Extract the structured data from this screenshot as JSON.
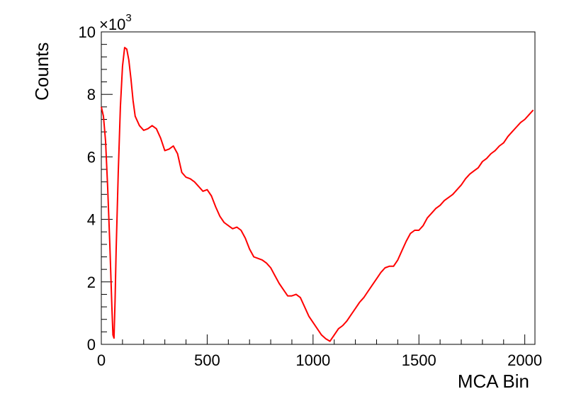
{
  "chart_data": {
    "type": "line",
    "title": "",
    "xlabel": "MCA Bin",
    "ylabel": "Counts",
    "y_multiplier_label": "×10",
    "y_multiplier_exponent": "3",
    "xlim": [
      0,
      2048
    ],
    "ylim": [
      0,
      10000
    ],
    "x_ticks": [
      0,
      500,
      1000,
      1500,
      2000
    ],
    "x_tick_labels": [
      "0",
      "500",
      "1000",
      "1500",
      "2000"
    ],
    "y_ticks": [
      0,
      2000,
      4000,
      6000,
      8000,
      10000
    ],
    "y_tick_labels": [
      "0",
      "2",
      "4",
      "6",
      "8",
      "10"
    ],
    "grid": false,
    "legend": "none",
    "series": [
      {
        "color": "#ff0000",
        "x": [
          0,
          10,
          20,
          30,
          40,
          50,
          55,
          60,
          65,
          70,
          80,
          90,
          100,
          110,
          120,
          130,
          140,
          150,
          160,
          170,
          180,
          200,
          220,
          240,
          260,
          280,
          300,
          320,
          340,
          360,
          380,
          400,
          420,
          440,
          460,
          480,
          500,
          520,
          540,
          560,
          580,
          600,
          620,
          640,
          660,
          680,
          700,
          720,
          740,
          760,
          780,
          800,
          820,
          840,
          860,
          880,
          900,
          920,
          940,
          960,
          980,
          1000,
          1020,
          1040,
          1060,
          1080,
          1100,
          1120,
          1140,
          1160,
          1180,
          1200,
          1220,
          1240,
          1260,
          1280,
          1300,
          1320,
          1340,
          1360,
          1380,
          1400,
          1420,
          1440,
          1460,
          1480,
          1500,
          1520,
          1540,
          1560,
          1580,
          1600,
          1620,
          1640,
          1660,
          1680,
          1700,
          1720,
          1740,
          1760,
          1780,
          1800,
          1820,
          1840,
          1860,
          1880,
          1900,
          1920,
          1940,
          1960,
          1980,
          2000,
          2020,
          2040
        ],
        "y": [
          7600,
          7300,
          6500,
          5000,
          3200,
          1200,
          300,
          200,
          1400,
          3000,
          5500,
          7600,
          8900,
          9500,
          9450,
          9100,
          8500,
          7800,
          7300,
          7150,
          7000,
          6850,
          6900,
          7000,
          6900,
          6600,
          6200,
          6250,
          6350,
          6100,
          5500,
          5350,
          5300,
          5200,
          5050,
          4900,
          4950,
          4750,
          4400,
          4100,
          3900,
          3800,
          3700,
          3750,
          3650,
          3400,
          3050,
          2800,
          2750,
          2700,
          2600,
          2450,
          2200,
          1950,
          1750,
          1550,
          1550,
          1600,
          1500,
          1200,
          900,
          700,
          500,
          300,
          180,
          100,
          300,
          500,
          600,
          750,
          950,
          1150,
          1350,
          1500,
          1700,
          1900,
          2100,
          2300,
          2450,
          2500,
          2500,
          2700,
          3000,
          3300,
          3550,
          3650,
          3650,
          3800,
          4050,
          4200,
          4350,
          4450,
          4600,
          4700,
          4800,
          4950,
          5100,
          5300,
          5450,
          5550,
          5650,
          5850,
          5950,
          6100,
          6200,
          6350,
          6450,
          6650,
          6800,
          6950,
          7100,
          7200,
          7350,
          7500
        ]
      }
    ]
  }
}
